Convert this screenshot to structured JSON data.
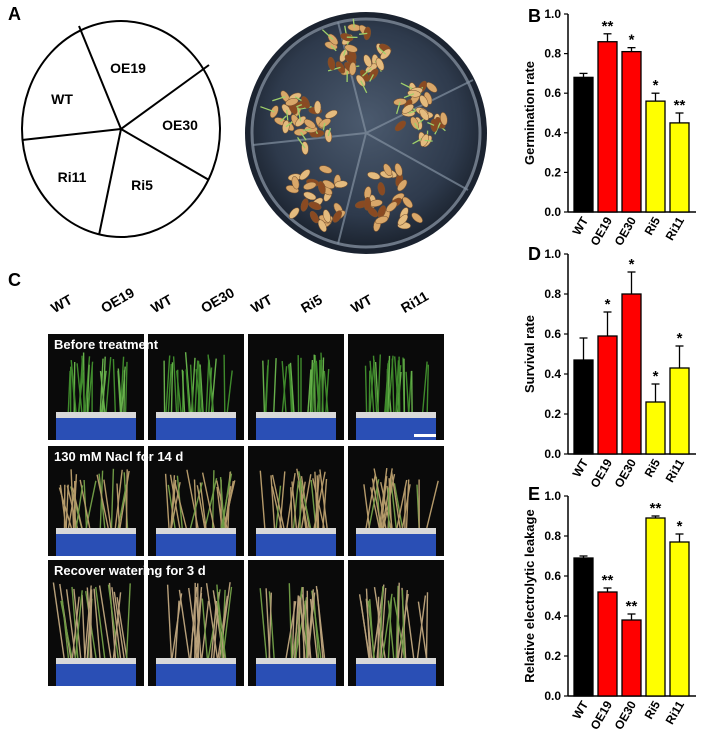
{
  "panels": {
    "A": "A",
    "B": "B",
    "C": "C",
    "D": "D",
    "E": "E"
  },
  "panel_a": {
    "sectors": [
      "OE19",
      "WT",
      "OE30",
      "Ri11",
      "Ri5"
    ]
  },
  "panel_c": {
    "genotypes": [
      [
        "WT",
        "OE19"
      ],
      [
        "WT",
        "OE30"
      ],
      [
        "WT",
        "Ri5"
      ],
      [
        "WT",
        "Ri11"
      ]
    ],
    "row_captions": [
      "Before treatment",
      "130 mM Nacl  for 14 d",
      "Recover watering for  3 d"
    ]
  },
  "colors": {
    "black": "#000000",
    "red": "#ff0000",
    "yellow": "#ffff00"
  },
  "chart_data": [
    {
      "type": "bar",
      "panel": "B",
      "categories": [
        "WT",
        "OE19",
        "OE30",
        "Ri5",
        "Ri11"
      ],
      "values": [
        0.68,
        0.86,
        0.81,
        0.56,
        0.45
      ],
      "errors": [
        0.02,
        0.04,
        0.02,
        0.04,
        0.05
      ],
      "significance": [
        "",
        "**",
        "*",
        "*",
        "**"
      ],
      "bar_colors": [
        "#000000",
        "#ff0000",
        "#ff0000",
        "#ffff00",
        "#ffff00"
      ],
      "ylabel": "Germination rate",
      "ylim": [
        0,
        1.0
      ],
      "yticks": [
        "0.0",
        "0.2",
        "0.4",
        "0.6",
        "0.8",
        "1.0"
      ]
    },
    {
      "type": "bar",
      "panel": "D",
      "categories": [
        "WT",
        "OE19",
        "OE30",
        "Ri5",
        "Ri11"
      ],
      "values": [
        0.47,
        0.59,
        0.8,
        0.26,
        0.43
      ],
      "errors": [
        0.11,
        0.12,
        0.11,
        0.09,
        0.11
      ],
      "significance": [
        "",
        "*",
        "*",
        "*",
        "*"
      ],
      "bar_colors": [
        "#000000",
        "#ff0000",
        "#ff0000",
        "#ffff00",
        "#ffff00"
      ],
      "ylabel": "Survival rate",
      "ylim": [
        0,
        1.0
      ],
      "yticks": [
        "0.0",
        "0.2",
        "0.4",
        "0.6",
        "0.8",
        "1.0"
      ]
    },
    {
      "type": "bar",
      "panel": "E",
      "categories": [
        "WT",
        "OE19",
        "OE30",
        "Ri5",
        "Ri11"
      ],
      "values": [
        0.69,
        0.52,
        0.38,
        0.89,
        0.77
      ],
      "errors": [
        0.01,
        0.02,
        0.03,
        0.01,
        0.04
      ],
      "significance": [
        "",
        "**",
        "**",
        "**",
        "*"
      ],
      "bar_colors": [
        "#000000",
        "#ff0000",
        "#ff0000",
        "#ffff00",
        "#ffff00"
      ],
      "ylabel": "Relative electrolytic leakage",
      "ylim": [
        0,
        1.0
      ],
      "yticks": [
        "0.0",
        "0.2",
        "0.4",
        "0.6",
        "0.8",
        "1.0"
      ]
    }
  ]
}
